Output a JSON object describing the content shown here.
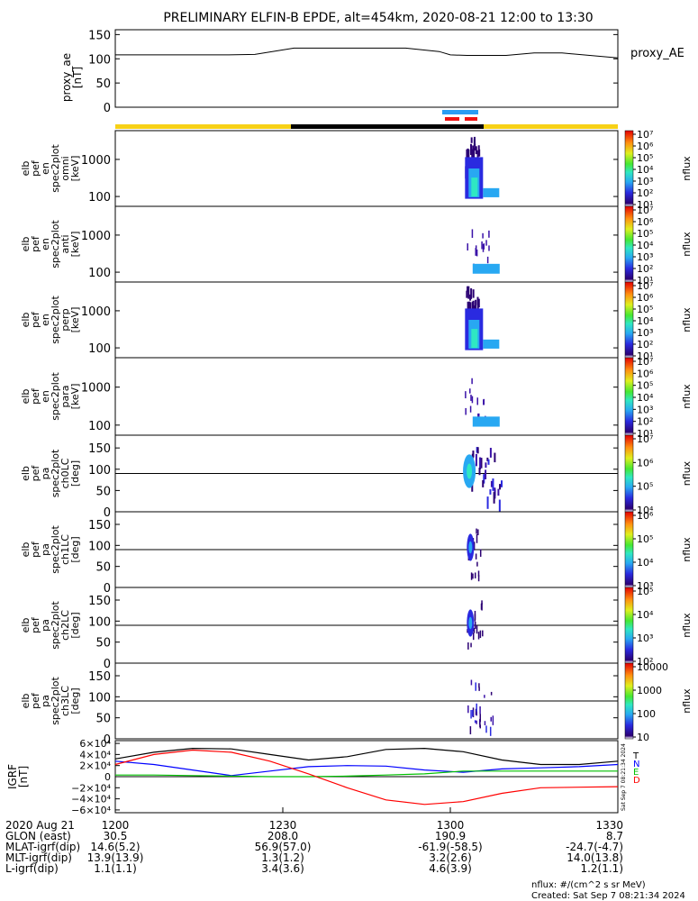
{
  "title": "PRELIMINARY ELFIN-B EPDE, alt=454km, 2020-08-21 12:00 to 13:30",
  "chart_data": {
    "type": "multi-panel spectrogram",
    "time_range": [
      "2020-08-21 12:00",
      "2020-08-21 13:30"
    ],
    "panels": [
      {
        "id": "proxy_ae",
        "type": "line",
        "ylabel": [
          "proxy_ae",
          "[nT]"
        ],
        "ylim": [
          0,
          160
        ],
        "yticks": [
          "150",
          "100",
          "50",
          "0"
        ],
        "legend": "proxy_AE",
        "t_min": [
          0,
          10,
          20,
          25,
          32,
          40,
          52,
          58,
          60,
          63,
          66,
          70,
          75,
          80,
          90
        ],
        "values": [
          108,
          108,
          108,
          109,
          122,
          122,
          122,
          115,
          108,
          107,
          107,
          107,
          112,
          112,
          102
        ]
      },
      {
        "id": "en_omni",
        "type": "spectrogram",
        "ylabel": [
          "elb",
          "pef",
          "en",
          "spec2plot",
          "omni",
          "[keV]"
        ],
        "yscale": "log",
        "yticks": [
          "1000",
          "100"
        ],
        "colorbar": {
          "ticks": [
            "10⁷",
            "10⁶",
            "10⁵",
            "10⁴",
            "10³",
            "10²",
            "10¹"
          ],
          "label": "nflux"
        }
      },
      {
        "id": "en_anti",
        "type": "spectrogram",
        "ylabel": [
          "elb",
          "pef",
          "en",
          "spec2plot",
          "anti",
          "[keV]"
        ],
        "yscale": "log",
        "yticks": [
          "1000",
          "100"
        ],
        "colorbar": {
          "ticks": [
            "10⁷",
            "10⁶",
            "10⁵",
            "10⁴",
            "10³",
            "10²",
            "10¹"
          ],
          "label": "nflux"
        }
      },
      {
        "id": "en_perp",
        "type": "spectrogram",
        "ylabel": [
          "elb",
          "pef",
          "en",
          "spec2plot",
          "perp",
          "[keV]"
        ],
        "yscale": "log",
        "yticks": [
          "1000",
          "100"
        ],
        "colorbar": {
          "ticks": [
            "10⁷",
            "10⁶",
            "10⁵",
            "10⁴",
            "10³",
            "10²",
            "10¹"
          ],
          "label": "nflux"
        }
      },
      {
        "id": "en_para",
        "type": "spectrogram",
        "ylabel": [
          "elb",
          "pef",
          "en",
          "spec2plot",
          "para",
          "[keV]"
        ],
        "yscale": "log",
        "yticks": [
          "1000",
          "100"
        ],
        "colorbar": {
          "ticks": [
            "10⁷",
            "10⁶",
            "10⁵",
            "10⁴",
            "10³",
            "10²",
            "10¹"
          ],
          "label": "nflux"
        }
      },
      {
        "id": "pa_ch0",
        "type": "spectrogram",
        "ylabel": [
          "elb",
          "pef",
          "pa",
          "spec2plot",
          "ch0LC",
          "[deg]"
        ],
        "ylim": [
          0,
          180
        ],
        "yticks": [
          "150",
          "100",
          "50",
          "0"
        ],
        "colorbar": {
          "ticks": [
            "10⁷",
            "10⁶",
            "10⁵",
            "10⁴"
          ],
          "label": "nflux"
        }
      },
      {
        "id": "pa_ch1",
        "type": "spectrogram",
        "ylabel": [
          "elb",
          "pef",
          "pa",
          "spec2plot",
          "ch1LC",
          "[deg]"
        ],
        "ylim": [
          0,
          180
        ],
        "yticks": [
          "150",
          "100",
          "50",
          "0"
        ],
        "colorbar": {
          "ticks": [
            "10⁶",
            "10⁵",
            "10⁴",
            "10³"
          ],
          "label": "nflux"
        }
      },
      {
        "id": "pa_ch2",
        "type": "spectrogram",
        "ylabel": [
          "elb",
          "pef",
          "pa",
          "spec2plot",
          "ch2LC",
          "[deg]"
        ],
        "ylim": [
          0,
          180
        ],
        "yticks": [
          "150",
          "100",
          "50",
          "0"
        ],
        "colorbar": {
          "ticks": [
            "10⁵",
            "10⁴",
            "10³",
            "10²"
          ],
          "label": "nflux"
        }
      },
      {
        "id": "pa_ch3",
        "type": "spectrogram",
        "ylabel": [
          "elb",
          "pef",
          "pa",
          "spec2plot",
          "ch3LC",
          "[deg]"
        ],
        "ylim": [
          0,
          180
        ],
        "yticks": [
          "150",
          "100",
          "50",
          "0"
        ],
        "colorbar": {
          "ticks": [
            "10000",
            "1000",
            "100",
            "10"
          ],
          "label": "nflux"
        }
      },
      {
        "id": "igrf",
        "type": "line",
        "ylabel": [
          "IGRF",
          "[nT]"
        ],
        "ylim": [
          -65000,
          65000
        ],
        "yticks": [
          "6×10⁴",
          "4×10⁴",
          "2×10⁴",
          "0",
          "−2×10⁴",
          "−4×10⁴",
          "−6×10⁴"
        ],
        "series": [
          {
            "name": "T",
            "color": "#000000",
            "values": [
              32000,
              44000,
              51000,
              50000,
              40000,
              30000,
              36000,
              49000,
              51000,
              45000,
              30000,
              22000,
              22000,
              28000
            ]
          },
          {
            "name": "N",
            "color": "#0000ff",
            "values": [
              28000,
              22000,
              12000,
              2000,
              10000,
              18000,
              20000,
              19000,
              12000,
              8000,
              14000,
              16000,
              18000,
              22000
            ]
          },
          {
            "name": "E",
            "color": "#00c000",
            "values": [
              3000,
              3000,
              2000,
              1000,
              0,
              0,
              1000,
              3000,
              5000,
              10000,
              10000,
              10000,
              10000,
              10000
            ]
          },
          {
            "name": "D",
            "color": "#ff0000",
            "values": [
              22000,
              40000,
              48000,
              44000,
              28000,
              5000,
              -20000,
              -42000,
              -50000,
              -45000,
              -30000,
              -20000,
              -19000,
              -18000
            ]
          }
        ]
      }
    ],
    "x_ticks": [
      "1200",
      "1230",
      "1300",
      "1330"
    ],
    "ephemeris": [
      {
        "label": "2020 Aug 21",
        "values": [
          "1200",
          "1230",
          "1300",
          "1330"
        ]
      },
      {
        "label": "GLON (east)",
        "values": [
          "30.5",
          "208.0",
          "190.9",
          "8.7"
        ]
      },
      {
        "label": "MLAT-igrf(dip)",
        "values": [
          "14.6(5.2)",
          "56.9(57.0)",
          "-61.9(-58.5)",
          "-24.7(-4.7)"
        ]
      },
      {
        "label": "MLT-igrf(dip)",
        "values": [
          "13.9(13.9)",
          "1.3(1.2)",
          "3.2(2.6)",
          "14.0(13.8)"
        ]
      },
      {
        "label": "L-igrf(dip)",
        "values": [
          "1.1(1.1)",
          "3.4(3.6)",
          "4.6(3.9)",
          "1.2(1.1)"
        ]
      }
    ]
  },
  "footer": {
    "units": "nflux: #/(cm^2 s sr MeV)",
    "created": "Created: Sat Sep  7 08:21:34 2024",
    "side_stamp": "Sat Sep  7 08:21:34 2024"
  },
  "status_bar": {
    "day": "#f7d117",
    "night": "#000000",
    "blue": "#2b9cf2",
    "red": "#ee1111"
  }
}
